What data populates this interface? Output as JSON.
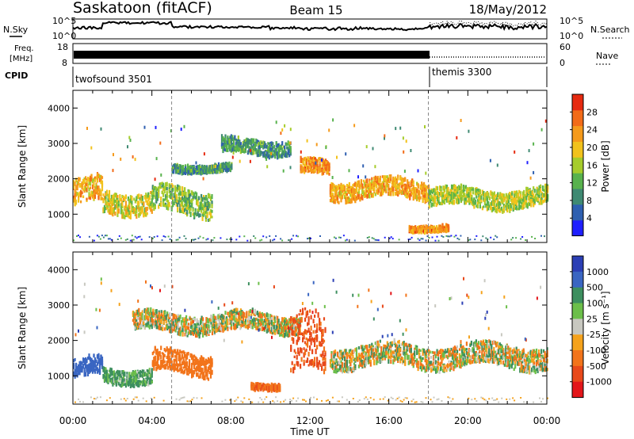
{
  "header": {
    "station": "Saskatoon (fitACF)",
    "beam": "Beam 15",
    "date": "18/May/2012"
  },
  "panel_labels": {
    "nsky": "N.Sky",
    "nsearch": "N.Search",
    "freq_line1": "Freq.",
    "freq_line2": "[MHz]",
    "nave": "Nave",
    "cpid": "CPID"
  },
  "noise_axis": {
    "left_top": "10^5",
    "left_bottom": "10^0",
    "right_top": "10^5",
    "right_bottom": "10^0"
  },
  "freq_axis": {
    "left_top": "18",
    "left_bottom": "8",
    "right_top": "60",
    "right_bottom": "0"
  },
  "cpid_segments": [
    {
      "label": "twofsound 3501",
      "start_hour": 0.0
    },
    {
      "label": "themis 3300",
      "start_hour": 18.0
    }
  ],
  "chart_data": [
    {
      "type": "heatmap",
      "name": "power",
      "xlabel": "",
      "ylabel": "Slant Range [km]",
      "xlim": [
        0,
        24
      ],
      "ylim": [
        200,
        4500
      ],
      "yticks": [
        1000,
        2000,
        3000,
        4000
      ],
      "colorbar": {
        "label": "Power [dB]",
        "ticks": [
          4,
          8,
          12,
          16,
          20,
          24,
          28
        ],
        "range": [
          0,
          32
        ],
        "colors": [
          "#1f1fff",
          "#2e5fb0",
          "#3f8a73",
          "#58b24d",
          "#a6cc2b",
          "#f2c21c",
          "#f59a1b",
          "#f26b18",
          "#e62a10"
        ]
      },
      "bands": [
        {
          "t_start": 0.0,
          "t_end": 1.5,
          "range_center": 1600,
          "range_width": 700,
          "power": 22
        },
        {
          "t_start": 1.5,
          "t_end": 4.0,
          "range_center": 1350,
          "range_width": 600,
          "power": 18
        },
        {
          "t_start": 4.0,
          "t_end": 7.0,
          "range_center": 1350,
          "range_width": 700,
          "power": 14
        },
        {
          "t_start": 5.0,
          "t_end": 8.0,
          "range_center": 2300,
          "range_width": 200,
          "power": 10
        },
        {
          "t_start": 7.5,
          "t_end": 11.0,
          "range_center": 2900,
          "range_width": 400,
          "power": 10
        },
        {
          "t_start": 11.5,
          "t_end": 13.0,
          "range_center": 2300,
          "range_width": 400,
          "power": 24
        },
        {
          "t_start": 13.0,
          "t_end": 18.0,
          "range_center": 1700,
          "range_width": 500,
          "power": 22
        },
        {
          "t_start": 17.0,
          "t_end": 19.0,
          "range_center": 600,
          "range_width": 150,
          "power": 24
        },
        {
          "t_start": 18.0,
          "t_end": 24.0,
          "range_center": 1450,
          "range_width": 500,
          "power": 16
        }
      ]
    },
    {
      "type": "heatmap",
      "name": "velocity",
      "xlabel": "Time UT",
      "ylabel": "Slant Range [km]",
      "xlim": [
        0,
        24
      ],
      "ylim": [
        200,
        4500
      ],
      "xticks": [
        "00:00",
        "04:00",
        "08:00",
        "12:00",
        "16:00",
        "20:00",
        "00:00"
      ],
      "yticks": [
        1000,
        2000,
        3000,
        4000
      ],
      "colorbar": {
        "label": "Velocity [m s⁻¹]",
        "ticks": [
          1000,
          500,
          100,
          25,
          -25,
          -100,
          -500,
          -1000
        ],
        "colors": [
          "#2b3fb5",
          "#3a66c2",
          "#3d8f5f",
          "#6cbf4a",
          "#c8c8c0",
          "#f5a21c",
          "#f2741b",
          "#e8491a",
          "#e3161a"
        ]
      },
      "bands": [
        {
          "t_start": 0.0,
          "t_end": 1.5,
          "range_center": 1200,
          "range_width": 500,
          "velocity": 800
        },
        {
          "t_start": 1.5,
          "t_end": 4.0,
          "range_center": 1000,
          "range_width": 400,
          "velocity": 200
        },
        {
          "t_start": 4.0,
          "t_end": 7.0,
          "range_center": 1350,
          "range_width": 600,
          "velocity": -300
        },
        {
          "t_start": 3.0,
          "t_end": 11.5,
          "range_center": 2500,
          "range_width": 500,
          "velocity": 0
        },
        {
          "t_start": 9.0,
          "t_end": 10.5,
          "range_center": 700,
          "range_width": 150,
          "velocity": -400
        },
        {
          "t_start": 11.0,
          "t_end": 12.8,
          "range_center": 1700,
          "range_width": 1600,
          "velocity": -600
        },
        {
          "t_start": 13.0,
          "t_end": 24.0,
          "range_center": 1550,
          "range_width": 600,
          "velocity": 0
        }
      ]
    }
  ]
}
